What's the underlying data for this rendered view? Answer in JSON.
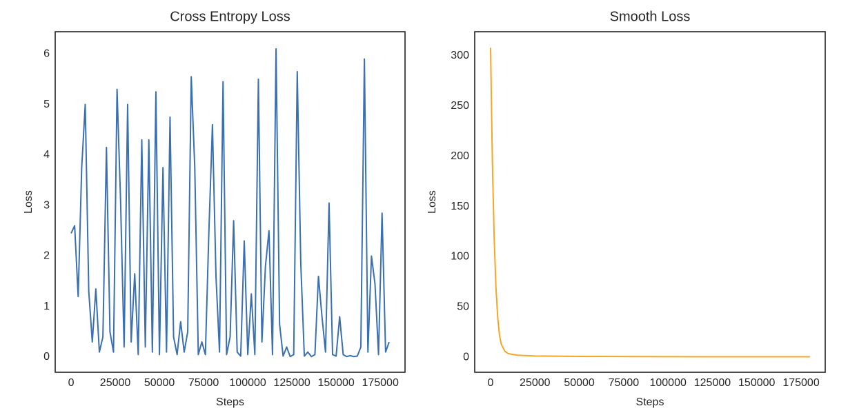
{
  "chart_data": [
    {
      "type": "line",
      "title": "Cross Entropy Loss",
      "xlabel": "Steps",
      "ylabel": "Loss",
      "color": "#3a6fb0",
      "grid": false,
      "xlim": [
        -9000,
        189000
      ],
      "ylim": [
        -0.3,
        6.44
      ],
      "xticks": [
        0,
        25000,
        50000,
        75000,
        100000,
        125000,
        150000,
        175000
      ],
      "yticks": [
        0,
        1,
        2,
        3,
        4,
        5,
        6
      ],
      "x": [
        0,
        2000,
        4000,
        6000,
        8000,
        10000,
        12000,
        14000,
        16000,
        18000,
        20000,
        22000,
        24000,
        26000,
        28000,
        30000,
        32000,
        34000,
        36000,
        38000,
        40000,
        42000,
        44000,
        46000,
        48000,
        50000,
        52000,
        54000,
        56000,
        58000,
        60000,
        62000,
        64000,
        66000,
        68000,
        70000,
        72000,
        74000,
        76000,
        78000,
        80000,
        82000,
        84000,
        86000,
        88000,
        90000,
        92000,
        94000,
        96000,
        98000,
        100000,
        102000,
        104000,
        106000,
        108000,
        110000,
        112000,
        114000,
        116000,
        118000,
        120000,
        122000,
        124000,
        126000,
        128000,
        130000,
        132000,
        134000,
        136000,
        138000,
        140000,
        142000,
        144000,
        146000,
        148000,
        150000,
        152000,
        154000,
        156000,
        158000,
        160000,
        162000,
        164000,
        166000,
        168000,
        170000,
        172000,
        174000,
        176000,
        178000,
        180000
      ],
      "values": [
        2.45,
        2.6,
        1.2,
        3.75,
        5.0,
        1.3,
        0.3,
        1.35,
        0.1,
        0.4,
        4.15,
        0.5,
        0.1,
        5.3,
        3.1,
        0.2,
        5.0,
        0.3,
        1.65,
        0.05,
        4.3,
        0.2,
        4.3,
        0.1,
        5.25,
        0.05,
        3.75,
        0.1,
        4.75,
        0.4,
        0.05,
        0.7,
        0.1,
        0.5,
        5.55,
        3.75,
        0.05,
        0.3,
        0.05,
        2.5,
        4.6,
        1.6,
        0.1,
        5.45,
        0.05,
        0.4,
        2.7,
        0.1,
        0.02,
        2.3,
        0.05,
        1.25,
        0.05,
        5.5,
        0.3,
        1.8,
        2.5,
        0.05,
        6.1,
        0.65,
        0.02,
        0.2,
        0.01,
        0.05,
        5.65,
        1.85,
        0.02,
        0.1,
        0.01,
        0.05,
        1.6,
        0.8,
        0.1,
        3.05,
        0.05,
        0.02,
        0.8,
        0.05,
        0.01,
        0.03,
        0.01,
        0.02,
        0.2,
        5.9,
        0.1,
        2.0,
        1.45,
        0.05,
        2.85,
        0.1,
        0.3
      ]
    },
    {
      "type": "line",
      "title": "Smooth Loss",
      "xlabel": "Steps",
      "ylabel": "Loss",
      "color": "#f5a623",
      "grid": false,
      "xlim": [
        -8950,
        188600
      ],
      "ylim": [
        -15,
        324
      ],
      "xticks": [
        0,
        25000,
        50000,
        75000,
        100000,
        125000,
        150000,
        175000
      ],
      "yticks": [
        0,
        50,
        100,
        150,
        200,
        250,
        300
      ],
      "x": [
        0,
        500,
        1000,
        2000,
        3000,
        4000,
        5000,
        6000,
        8000,
        10000,
        15000,
        25000,
        50000,
        100000,
        150000,
        180000
      ],
      "values": [
        308,
        250,
        195,
        120,
        70,
        40,
        22,
        13,
        6,
        3.5,
        2,
        1.2,
        0.8,
        0.5,
        0.4,
        0.4
      ]
    }
  ]
}
